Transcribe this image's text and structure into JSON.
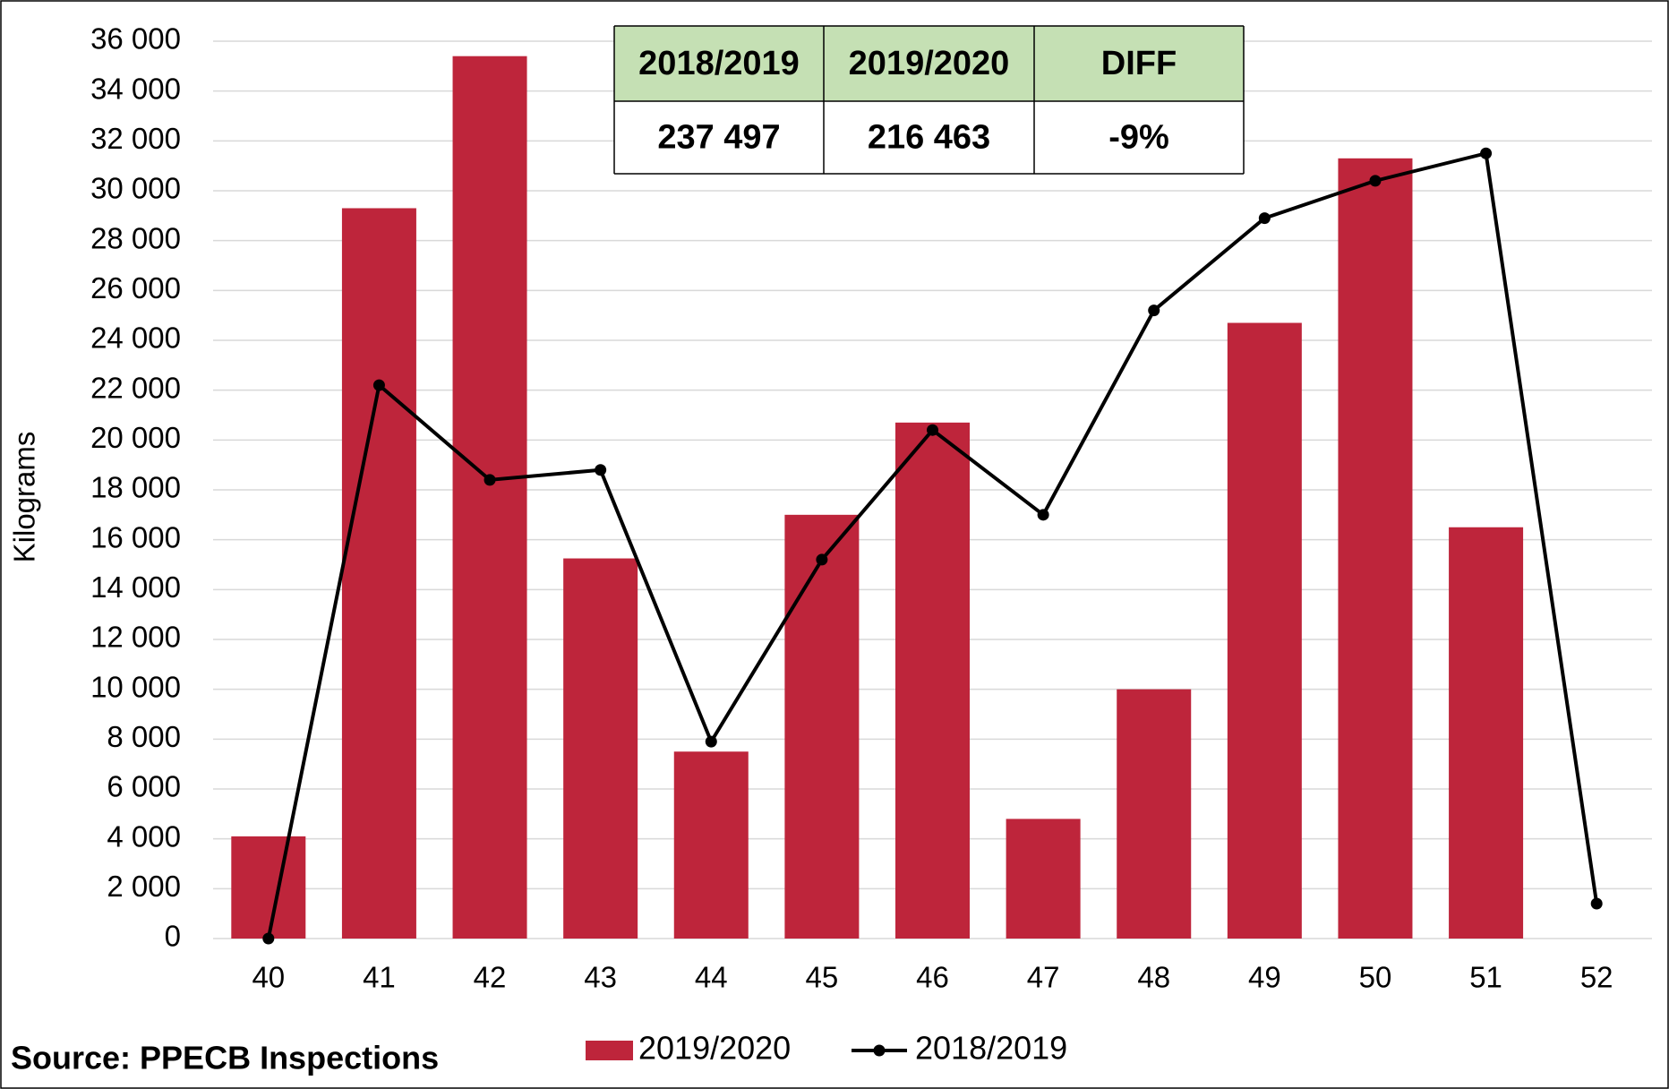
{
  "chart_data": {
    "type": "bar_line",
    "y_label": "Kilograms",
    "categories": [
      "40",
      "41",
      "42",
      "43",
      "44",
      "45",
      "46",
      "47",
      "48",
      "49",
      "50",
      "51",
      "52"
    ],
    "series": [
      {
        "name": "2019/2020",
        "type": "bar",
        "color": "#be253b",
        "values": [
          4100,
          29300,
          35400,
          15250,
          7500,
          17000,
          20700,
          4800,
          10000,
          24700,
          31300,
          16500,
          null
        ]
      },
      {
        "name": "2018/2019",
        "type": "line",
        "color": "#000000",
        "values": [
          0,
          22200,
          18400,
          18800,
          7900,
          15200,
          20400,
          17000,
          25200,
          28900,
          30400,
          31500,
          1400
        ]
      }
    ],
    "ylim": [
      0,
      36000
    ],
    "yticks": [
      0,
      {
        "value": 2000,
        "label": "2 000"
      },
      {
        "value": 4000,
        "label": "4 000"
      },
      {
        "value": 6000,
        "label": "6 000"
      },
      {
        "value": 8000,
        "label": "8 000"
      },
      {
        "value": 10000,
        "label": "10 000"
      },
      {
        "value": 12000,
        "label": "12 000"
      },
      {
        "value": 14000,
        "label": "14 000"
      },
      {
        "value": 16000,
        "label": "16 000"
      },
      {
        "value": 18000,
        "label": "18 000"
      },
      {
        "value": 20000,
        "label": "20 000"
      },
      {
        "value": 22000,
        "label": "22 000"
      },
      {
        "value": 24000,
        "label": "24 000"
      },
      {
        "value": 26000,
        "label": "26 000"
      },
      {
        "value": 28000,
        "label": "28 000"
      },
      {
        "value": 30000,
        "label": "30 000"
      },
      {
        "value": 32000,
        "label": "32 000"
      },
      {
        "value": 34000,
        "label": "34 000"
      },
      {
        "value": 36000,
        "label": "36 000"
      }
    ],
    "grid": true,
    "legend": "bottom"
  },
  "table": {
    "headers": [
      "2018/2019",
      "2019/2020",
      "DIFF"
    ],
    "rows": [
      [
        "237 497",
        "216 463",
        "-9%"
      ]
    ]
  },
  "source": "Source: PPECB Inspections"
}
